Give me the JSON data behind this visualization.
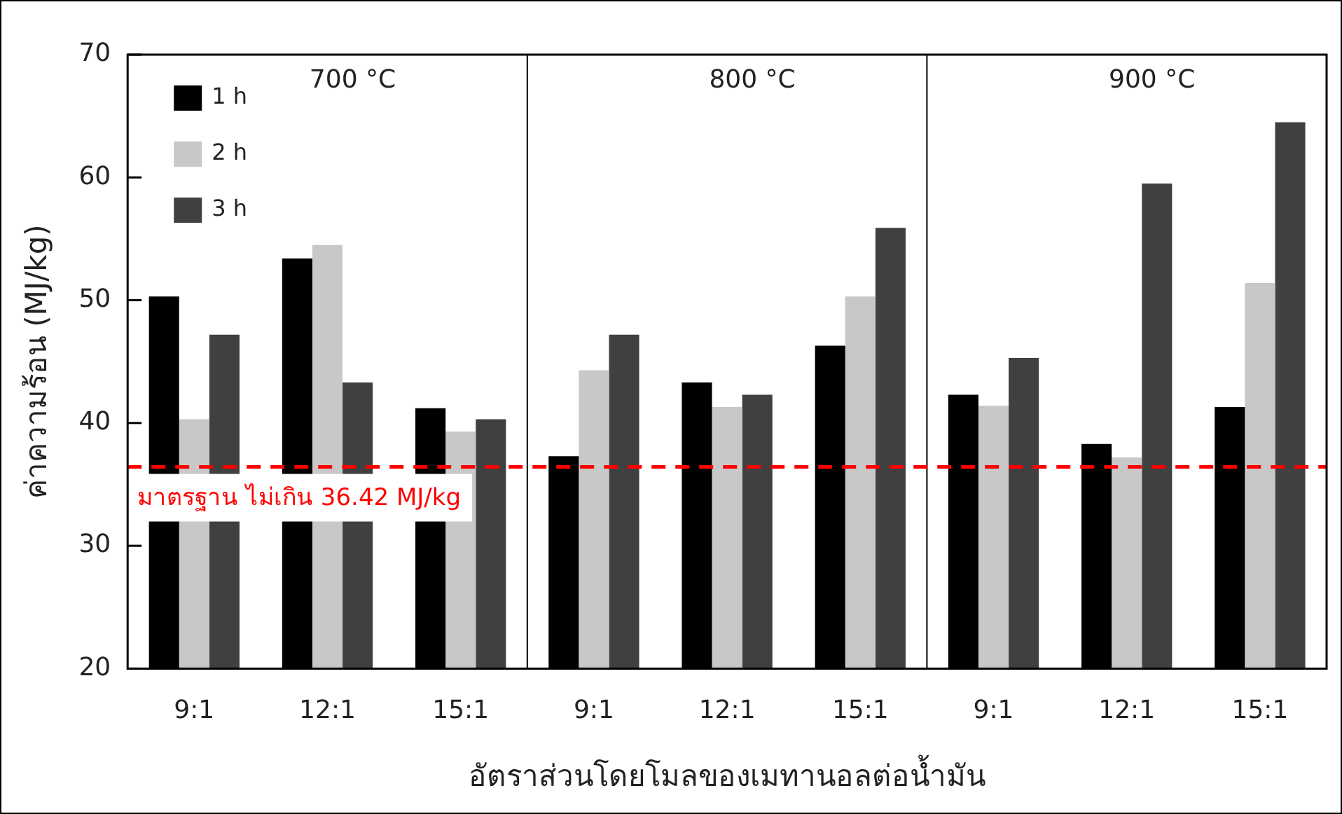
{
  "chart_data": {
    "type": "bar",
    "xlabel": "อัตราส่วนโดยโมลของเมทานอลต่อน้ำมัน",
    "ylabel": "ค่าความร้อน (MJ/kg)",
    "categories": [
      "9:1",
      "12:1",
      "15:1",
      "9:1",
      "12:1",
      "15:1",
      "9:1",
      "12:1",
      "15:1"
    ],
    "series": [
      {
        "name": "1 h",
        "color": "#000000",
        "values": [
          50.3,
          53.4,
          41.2,
          37.3,
          43.3,
          46.3,
          42.3,
          38.3,
          41.3
        ]
      },
      {
        "name": "2 h",
        "color": "#c8c8c8",
        "values": [
          40.3,
          54.5,
          39.3,
          44.3,
          41.3,
          50.3,
          41.4,
          37.2,
          51.4
        ]
      },
      {
        "name": "3 h",
        "color": "#404040",
        "values": [
          47.2,
          43.3,
          40.3,
          47.2,
          42.3,
          55.9,
          45.3,
          59.5,
          64.5
        ]
      }
    ],
    "annotations": [
      "700 °C",
      "800 °C",
      "900 °C"
    ],
    "ylim": [
      20,
      70
    ],
    "yticks": [
      20,
      30,
      40,
      50,
      60,
      70
    ],
    "grid": false,
    "legend": "top left",
    "ref_lines": [
      {
        "axis": "y",
        "value": 36.42,
        "label": "มาตรฐาน ไม่เกิน 36.42 MJ/kg",
        "color": "#ff0000",
        "line_style": "dashed"
      }
    ]
  }
}
